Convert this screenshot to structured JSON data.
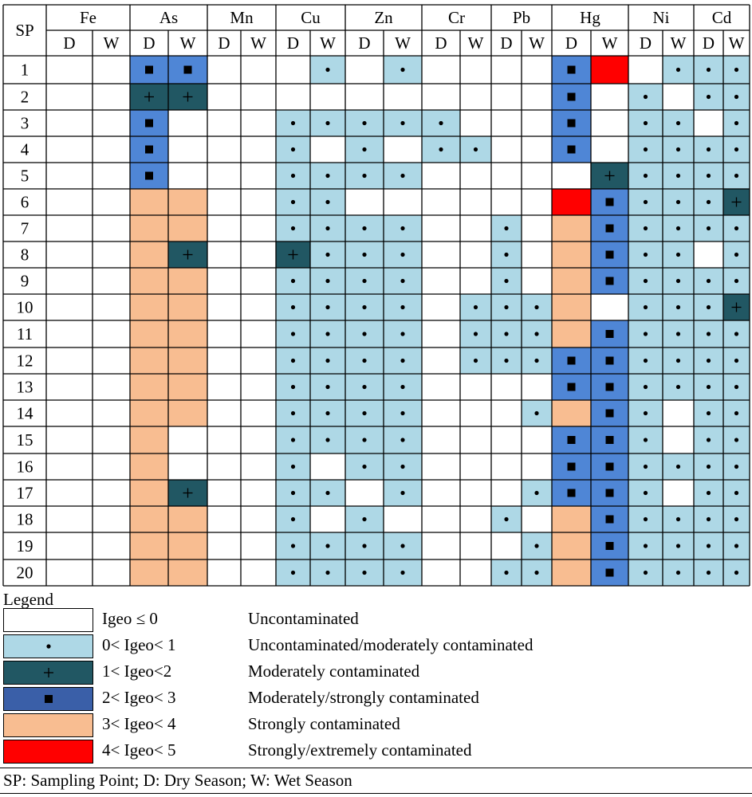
{
  "chart_data": {
    "type": "heatmap",
    "title": "",
    "row_header": "SP",
    "metals": [
      "Fe",
      "As",
      "Mn",
      "Cu",
      "Zn",
      "Cr",
      "Pb",
      "Hg",
      "Ni",
      "Cd"
    ],
    "seasons": [
      "D",
      "W"
    ],
    "sampling_points": [
      "1",
      "2",
      "3",
      "4",
      "5",
      "6",
      "7",
      "8",
      "9",
      "10",
      "11",
      "12",
      "13",
      "14",
      "15",
      "16",
      "17",
      "18",
      "19",
      "20"
    ],
    "level_colors": [
      "#ffffff",
      "#aed8e6",
      "#215763",
      "#4f86d6",
      "#f8bd91",
      "#ff0000"
    ],
    "levels": [
      [
        0,
        0,
        3,
        3,
        0,
        0,
        0,
        1,
        0,
        1,
        0,
        0,
        0,
        0,
        3,
        5,
        0,
        1,
        1,
        1
      ],
      [
        0,
        0,
        2,
        2,
        0,
        0,
        0,
        0,
        0,
        0,
        0,
        0,
        0,
        0,
        3,
        0,
        1,
        0,
        1,
        1
      ],
      [
        0,
        0,
        3,
        0,
        0,
        0,
        1,
        1,
        1,
        1,
        1,
        0,
        0,
        0,
        3,
        0,
        1,
        1,
        0,
        1
      ],
      [
        0,
        0,
        3,
        0,
        0,
        0,
        1,
        0,
        1,
        0,
        1,
        1,
        0,
        0,
        3,
        0,
        1,
        1,
        1,
        1
      ],
      [
        0,
        0,
        3,
        0,
        0,
        0,
        1,
        1,
        1,
        1,
        0,
        0,
        0,
        0,
        0,
        2,
        1,
        1,
        1,
        1
      ],
      [
        0,
        0,
        4,
        4,
        0,
        0,
        1,
        1,
        0,
        0,
        0,
        0,
        0,
        0,
        5,
        3,
        1,
        1,
        1,
        2
      ],
      [
        0,
        0,
        4,
        4,
        0,
        0,
        1,
        1,
        1,
        1,
        0,
        0,
        1,
        0,
        4,
        3,
        1,
        1,
        1,
        1
      ],
      [
        0,
        0,
        4,
        2,
        0,
        0,
        2,
        1,
        1,
        1,
        0,
        0,
        1,
        0,
        4,
        3,
        1,
        1,
        0,
        1
      ],
      [
        0,
        0,
        4,
        4,
        0,
        0,
        1,
        1,
        1,
        1,
        0,
        0,
        1,
        0,
        4,
        3,
        1,
        1,
        1,
        1
      ],
      [
        0,
        0,
        4,
        4,
        0,
        0,
        1,
        1,
        1,
        1,
        0,
        1,
        1,
        1,
        4,
        0,
        1,
        1,
        1,
        2
      ],
      [
        0,
        0,
        4,
        4,
        0,
        0,
        1,
        1,
        1,
        1,
        0,
        1,
        1,
        1,
        4,
        3,
        1,
        1,
        1,
        1
      ],
      [
        0,
        0,
        4,
        4,
        0,
        0,
        1,
        1,
        1,
        1,
        0,
        1,
        1,
        1,
        3,
        3,
        1,
        1,
        1,
        1
      ],
      [
        0,
        0,
        4,
        4,
        0,
        0,
        1,
        1,
        1,
        1,
        0,
        0,
        0,
        0,
        3,
        3,
        1,
        1,
        1,
        1
      ],
      [
        0,
        0,
        4,
        4,
        0,
        0,
        1,
        1,
        1,
        1,
        0,
        0,
        0,
        1,
        4,
        3,
        1,
        0,
        1,
        1
      ],
      [
        0,
        0,
        4,
        0,
        0,
        0,
        1,
        1,
        1,
        1,
        0,
        0,
        0,
        0,
        3,
        3,
        1,
        0,
        1,
        1
      ],
      [
        0,
        0,
        4,
        0,
        0,
        0,
        1,
        0,
        1,
        1,
        0,
        0,
        0,
        0,
        3,
        3,
        1,
        1,
        1,
        1
      ],
      [
        0,
        0,
        4,
        2,
        0,
        0,
        1,
        1,
        0,
        1,
        0,
        0,
        0,
        1,
        3,
        3,
        1,
        0,
        1,
        1
      ],
      [
        0,
        0,
        4,
        4,
        0,
        0,
        1,
        0,
        1,
        0,
        0,
        0,
        1,
        0,
        4,
        3,
        1,
        1,
        1,
        1
      ],
      [
        0,
        0,
        4,
        4,
        0,
        0,
        1,
        1,
        1,
        1,
        0,
        0,
        0,
        1,
        4,
        3,
        1,
        1,
        1,
        1
      ],
      [
        0,
        0,
        4,
        4,
        0,
        0,
        1,
        1,
        1,
        1,
        0,
        0,
        1,
        1,
        4,
        3,
        1,
        1,
        1,
        1
      ]
    ]
  },
  "legend": {
    "title": "Legend",
    "items": [
      {
        "range": "Igeo ≤ 0",
        "description": "Uncontaminated"
      },
      {
        "range": "0< Igeo< 1",
        "description": "Uncontaminated/moderately contaminated"
      },
      {
        "range": "1< Igeo<2",
        "description": "Moderately contaminated"
      },
      {
        "range": "2< Igeo< 3",
        "description": "Moderately/strongly contaminated"
      },
      {
        "range": "3< Igeo< 4",
        "description": "Strongly contaminated"
      },
      {
        "range": "4< Igeo< 5",
        "description": "Strongly/extremely contaminated"
      }
    ]
  },
  "footnote": "SP: Sampling Point; D: Dry Season; W: Wet Season"
}
